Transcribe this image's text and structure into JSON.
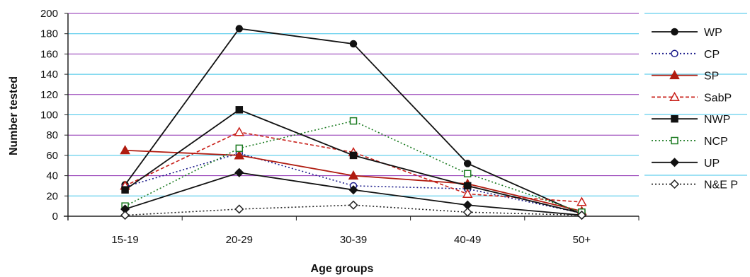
{
  "chart_data": {
    "type": "line",
    "title": "",
    "xlabel": "Age groups",
    "ylabel": "Number tested",
    "categories": [
      "15-19",
      "20-29",
      "30-39",
      "40-49",
      "50+"
    ],
    "ylim": [
      0,
      200
    ],
    "yticks": [
      0,
      20,
      40,
      60,
      80,
      100,
      120,
      140,
      160,
      180,
      200
    ],
    "grid": true,
    "legend_position": "right",
    "series": [
      {
        "name": "WP",
        "values": [
          31,
          185,
          170,
          52,
          2
        ],
        "color": "#111111",
        "dash": "solid",
        "marker": "circle-filled"
      },
      {
        "name": "CP",
        "values": [
          29,
          62,
          30,
          27,
          3
        ],
        "color": "#1a1a8a",
        "dash": "dotted",
        "marker": "circle-open"
      },
      {
        "name": "SP",
        "values": [
          65,
          60,
          40,
          32,
          5
        ],
        "color": "#b01c10",
        "dash": "solid",
        "marker": "triangle-filled"
      },
      {
        "name": "SabP",
        "values": [
          30,
          83,
          63,
          22,
          14
        ],
        "color": "#c8201a",
        "dash": "dashed",
        "marker": "triangle-open"
      },
      {
        "name": "NWP",
        "values": [
          26,
          105,
          60,
          30,
          3
        ],
        "color": "#111111",
        "dash": "solid",
        "marker": "square-filled"
      },
      {
        "name": "NCP",
        "values": [
          10,
          67,
          94,
          42,
          4
        ],
        "color": "#1a7a20",
        "dash": "dotted",
        "marker": "square-open"
      },
      {
        "name": "UP",
        "values": [
          7,
          43,
          26,
          11,
          1
        ],
        "color": "#111111",
        "dash": "solid",
        "marker": "diamond-filled"
      },
      {
        "name": "N&E P",
        "values": [
          1,
          7,
          11,
          4,
          1
        ],
        "color": "#222222",
        "dash": "dotted",
        "marker": "diamond-open"
      }
    ],
    "gridline_colors": {
      "blue": "#3ec3e8",
      "purple": "#8c2bb0"
    }
  }
}
